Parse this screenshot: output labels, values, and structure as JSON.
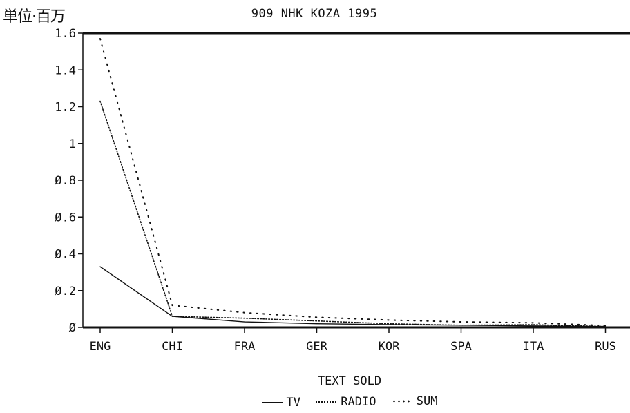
{
  "chart_data": {
    "type": "line",
    "title": "909 NHK KOZA 1995",
    "unit_label": "単位·百万",
    "xlabel": "TEXT SOLD",
    "ylabel": "",
    "categories": [
      "ENG",
      "CHI",
      "FRA",
      "GER",
      "KOR",
      "SPA",
      "ITA",
      "RUS"
    ],
    "ylim": [
      0,
      1.6
    ],
    "yticks": [
      "0",
      "0.2",
      "0.4",
      "0.6",
      "0.8",
      "1",
      "1.2",
      "1.4",
      "1.6"
    ],
    "grid": false,
    "legend_position": "bottom-center",
    "series": [
      {
        "name": "TV",
        "style": "solid",
        "values": [
          0.33,
          0.06,
          0.03,
          0.02,
          0.015,
          0.012,
          0.008,
          0.005
        ]
      },
      {
        "name": "RADIO",
        "style": "dotted-fine",
        "values": [
          1.23,
          0.06,
          0.05,
          0.035,
          0.02,
          0.012,
          0.015,
          0.005
        ]
      },
      {
        "name": "SUM",
        "style": "dotted-sparse",
        "values": [
          1.57,
          0.12,
          0.08,
          0.055,
          0.04,
          0.03,
          0.025,
          0.01
        ]
      }
    ]
  }
}
